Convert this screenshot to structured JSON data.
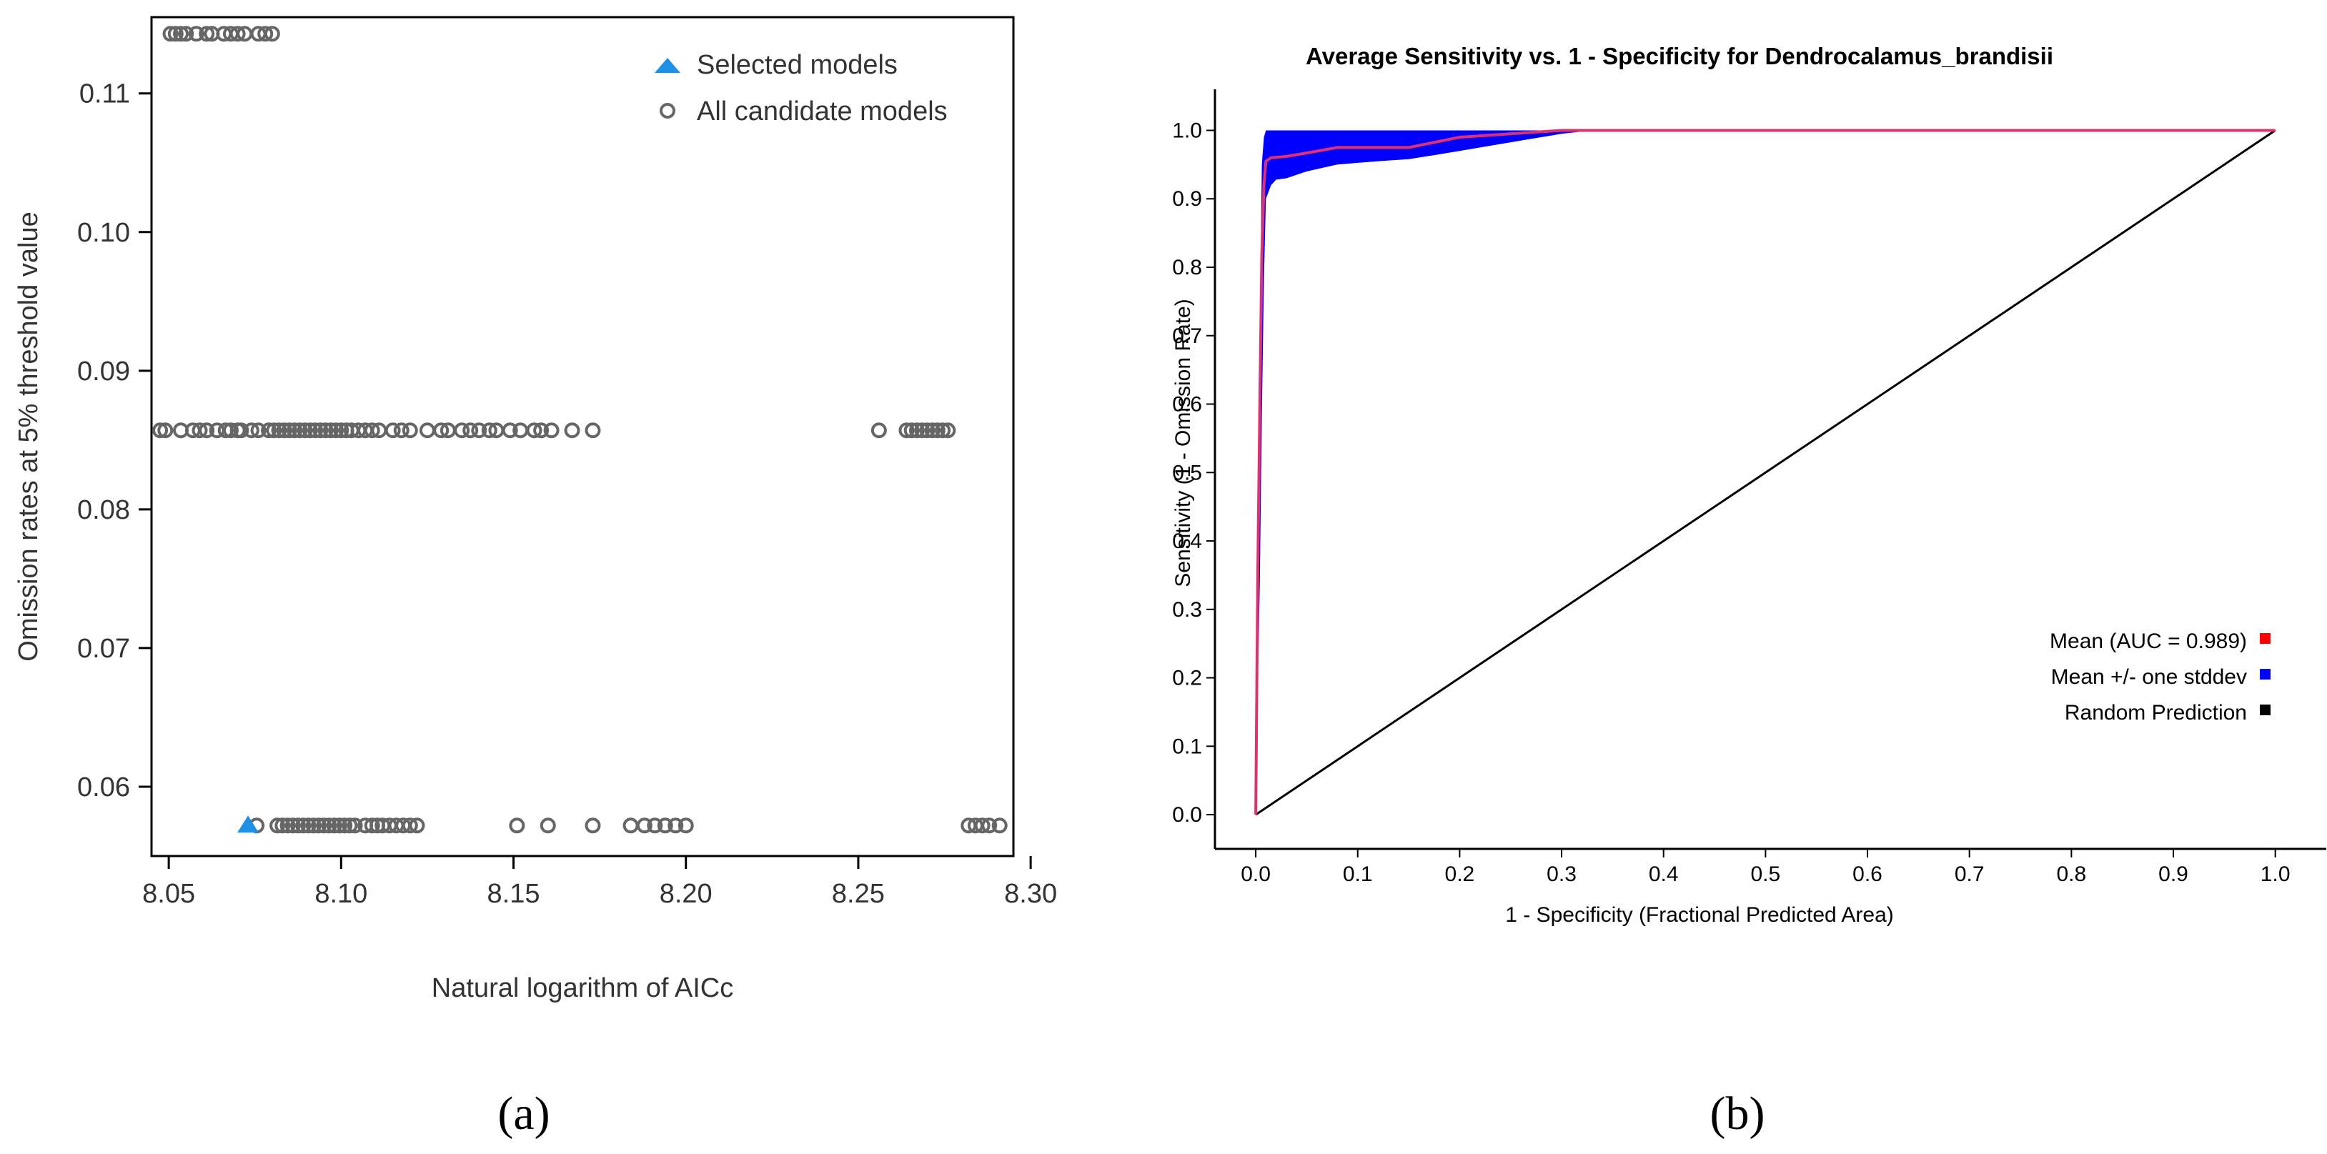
{
  "colors": {
    "selected": "#1e90e6",
    "candidate": "#666666",
    "roc_mean": "#ff0000",
    "roc_band": "#0000ff",
    "roc_random": "#000000",
    "mean_line": "#e0306e"
  },
  "panel_labels": {
    "a": "(a)",
    "b": "(b)"
  },
  "chart_data": [
    {
      "type": "scatter",
      "title": "",
      "xlabel": "Natural logarithm of AICc",
      "ylabel": "Omission rates at 5% threshold value",
      "xlim": [
        8.045,
        8.295
      ],
      "ylim": [
        0.055,
        0.1155
      ],
      "xticks": [
        8.05,
        8.1,
        8.15,
        8.2,
        8.25,
        8.3
      ],
      "xtick_labels": [
        "8.05",
        "8.10",
        "8.15",
        "8.20",
        "8.25",
        "8.30"
      ],
      "yticks": [
        0.06,
        0.07,
        0.08,
        0.09,
        0.1,
        0.11
      ],
      "ytick_labels": [
        "0.06",
        "0.07",
        "0.08",
        "0.09",
        "0.10",
        "0.11"
      ],
      "legend": {
        "position": "top-right",
        "entries": [
          "Selected models",
          "All candidate models"
        ]
      },
      "series": [
        {
          "name": "Selected models",
          "marker": "triangle",
          "points": [
            [
              8.073,
              0.0572
            ]
          ]
        },
        {
          "name": "All candidate models",
          "marker": "circle",
          "points": [
            [
              8.0505,
              0.1143
            ],
            [
              8.052,
              0.1143
            ],
            [
              8.0535,
              0.1143
            ],
            [
              8.055,
              0.1143
            ],
            [
              8.058,
              0.1143
            ],
            [
              8.061,
              0.1143
            ],
            [
              8.0625,
              0.1143
            ],
            [
              8.066,
              0.1143
            ],
            [
              8.068,
              0.1143
            ],
            [
              8.07,
              0.1143
            ],
            [
              8.072,
              0.1143
            ],
            [
              8.076,
              0.1143
            ],
            [
              8.078,
              0.1143
            ],
            [
              8.08,
              0.1143
            ],
            [
              8.0475,
              0.0857
            ],
            [
              8.049,
              0.0857
            ],
            [
              8.0535,
              0.0857
            ],
            [
              8.057,
              0.0857
            ],
            [
              8.059,
              0.0857
            ],
            [
              8.061,
              0.0857
            ],
            [
              8.064,
              0.0857
            ],
            [
              8.0665,
              0.0857
            ],
            [
              8.068,
              0.0857
            ],
            [
              8.07,
              0.0857
            ],
            [
              8.071,
              0.0857
            ],
            [
              8.074,
              0.0857
            ],
            [
              8.076,
              0.0857
            ],
            [
              8.079,
              0.0857
            ],
            [
              8.0805,
              0.0857
            ],
            [
              8.082,
              0.0857
            ],
            [
              8.0835,
              0.0857
            ],
            [
              8.085,
              0.0857
            ],
            [
              8.0865,
              0.0857
            ],
            [
              8.088,
              0.0857
            ],
            [
              8.0895,
              0.0857
            ],
            [
              8.091,
              0.0857
            ],
            [
              8.0925,
              0.0857
            ],
            [
              8.094,
              0.0857
            ],
            [
              8.0955,
              0.0857
            ],
            [
              8.097,
              0.0857
            ],
            [
              8.0985,
              0.0857
            ],
            [
              8.1,
              0.0857
            ],
            [
              8.1015,
              0.0857
            ],
            [
              8.103,
              0.0857
            ],
            [
              8.105,
              0.0857
            ],
            [
              8.107,
              0.0857
            ],
            [
              8.109,
              0.0857
            ],
            [
              8.111,
              0.0857
            ],
            [
              8.115,
              0.0857
            ],
            [
              8.1175,
              0.0857
            ],
            [
              8.12,
              0.0857
            ],
            [
              8.125,
              0.0857
            ],
            [
              8.129,
              0.0857
            ],
            [
              8.131,
              0.0857
            ],
            [
              8.135,
              0.0857
            ],
            [
              8.1375,
              0.0857
            ],
            [
              8.14,
              0.0857
            ],
            [
              8.143,
              0.0857
            ],
            [
              8.145,
              0.0857
            ],
            [
              8.149,
              0.0857
            ],
            [
              8.152,
              0.0857
            ],
            [
              8.156,
              0.0857
            ],
            [
              8.158,
              0.0857
            ],
            [
              8.161,
              0.0857
            ],
            [
              8.167,
              0.0857
            ],
            [
              8.173,
              0.0857
            ],
            [
              8.256,
              0.0857
            ],
            [
              8.264,
              0.0857
            ],
            [
              8.2655,
              0.0857
            ],
            [
              8.267,
              0.0857
            ],
            [
              8.2685,
              0.0857
            ],
            [
              8.27,
              0.0857
            ],
            [
              8.2715,
              0.0857
            ],
            [
              8.273,
              0.0857
            ],
            [
              8.2745,
              0.0857
            ],
            [
              8.276,
              0.0857
            ],
            [
              8.0755,
              0.0572
            ],
            [
              8.0815,
              0.0572
            ],
            [
              8.083,
              0.0572
            ],
            [
              8.0845,
              0.0572
            ],
            [
              8.086,
              0.0572
            ],
            [
              8.0875,
              0.0572
            ],
            [
              8.089,
              0.0572
            ],
            [
              8.0905,
              0.0572
            ],
            [
              8.092,
              0.0572
            ],
            [
              8.0935,
              0.0572
            ],
            [
              8.095,
              0.0572
            ],
            [
              8.0965,
              0.0572
            ],
            [
              8.098,
              0.0572
            ],
            [
              8.0995,
              0.0572
            ],
            [
              8.101,
              0.0572
            ],
            [
              8.1025,
              0.0572
            ],
            [
              8.104,
              0.0572
            ],
            [
              8.107,
              0.0572
            ],
            [
              8.109,
              0.0572
            ],
            [
              8.1105,
              0.0572
            ],
            [
              8.112,
              0.0572
            ],
            [
              8.114,
              0.0572
            ],
            [
              8.116,
              0.0572
            ],
            [
              8.118,
              0.0572
            ],
            [
              8.12,
              0.0572
            ],
            [
              8.122,
              0.0572
            ],
            [
              8.151,
              0.0572
            ],
            [
              8.16,
              0.0572
            ],
            [
              8.173,
              0.0572
            ],
            [
              8.184,
              0.0572
            ],
            [
              8.188,
              0.0572
            ],
            [
              8.191,
              0.0572
            ],
            [
              8.194,
              0.0572
            ],
            [
              8.197,
              0.0572
            ],
            [
              8.2,
              0.0572
            ],
            [
              8.282,
              0.0572
            ],
            [
              8.284,
              0.0572
            ],
            [
              8.286,
              0.0572
            ],
            [
              8.288,
              0.0572
            ],
            [
              8.291,
              0.0572
            ]
          ]
        }
      ]
    },
    {
      "type": "line",
      "title": "Average Sensitivity vs. 1 - Specificity for Dendrocalamus_brandisii",
      "xlabel": "1 - Specificity (Fractional Predicted Area)",
      "ylabel": "Sensitivity (1 - Omission Rate)",
      "xlim": [
        -0.04,
        1.05
      ],
      "ylim": [
        -0.05,
        1.06
      ],
      "xticks": [
        0.0,
        0.1,
        0.2,
        0.3,
        0.4,
        0.5,
        0.6,
        0.7,
        0.8,
        0.9,
        1.0
      ],
      "xtick_labels": [
        "0.0",
        "0.1",
        "0.2",
        "0.3",
        "0.4",
        "0.5",
        "0.6",
        "0.7",
        "0.8",
        "0.9",
        "1.0"
      ],
      "yticks": [
        0.0,
        0.1,
        0.2,
        0.3,
        0.4,
        0.5,
        0.6,
        0.7,
        0.8,
        0.9,
        1.0
      ],
      "ytick_labels": [
        "0.0",
        "0.1",
        "0.2",
        "0.3",
        "0.4",
        "0.5",
        "0.6",
        "0.7",
        "0.8",
        "0.9",
        "1.0"
      ],
      "legend": {
        "position": "bottom-right",
        "entries": [
          "Mean (AUC = 0.989)",
          "Mean +/- one stddev",
          "Random Prediction"
        ]
      },
      "series": [
        {
          "name": "Mean (AUC = 0.989)",
          "x": [
            0.0,
            0.002,
            0.004,
            0.006,
            0.008,
            0.01,
            0.015,
            0.03,
            0.05,
            0.08,
            0.15,
            0.2,
            0.25,
            0.3,
            0.33,
            0.5,
            1.0
          ],
          "y": [
            0.0,
            0.35,
            0.6,
            0.82,
            0.92,
            0.955,
            0.96,
            0.962,
            0.967,
            0.975,
            0.975,
            0.99,
            0.995,
            1.0,
            1.0,
            1.0,
            1.0
          ]
        },
        {
          "name": "Mean +/- one stddev",
          "x": [
            0.0,
            0.002,
            0.004,
            0.006,
            0.008,
            0.01,
            0.015,
            0.02,
            0.03,
            0.05,
            0.08,
            0.12,
            0.15,
            0.18,
            0.22,
            0.26,
            0.3,
            0.33,
            1.0
          ],
          "upper": [
            0.05,
            0.47,
            0.72,
            0.95,
            0.99,
            1.0,
            1.0,
            1.0,
            1.0,
            1.0,
            1.0,
            1.0,
            1.0,
            1.0,
            1.0,
            1.0,
            1.0,
            1.0,
            1.0
          ],
          "lower": [
            0.0,
            0.18,
            0.34,
            0.58,
            0.78,
            0.9,
            0.92,
            0.928,
            0.93,
            0.94,
            0.95,
            0.955,
            0.958,
            0.965,
            0.975,
            0.985,
            0.995,
            1.0,
            1.0
          ]
        },
        {
          "name": "Random Prediction",
          "x": [
            0.0,
            1.0
          ],
          "y": [
            0.0,
            1.0
          ]
        }
      ]
    }
  ]
}
